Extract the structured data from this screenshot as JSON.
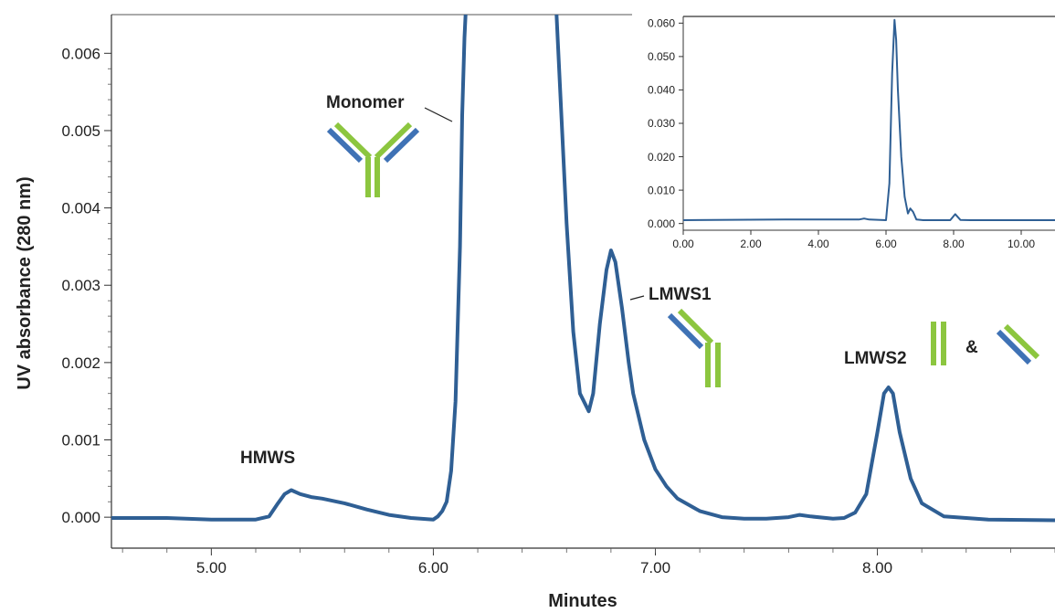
{
  "chart_data": [
    {
      "type": "line",
      "xlabel": "Minutes",
      "ylabel": "UV absorbance (280 nm)",
      "xlim": [
        4.55,
        8.8
      ],
      "ylim": [
        -0.0004,
        0.0065
      ],
      "xticks": [
        5.0,
        6.0,
        7.0,
        8.0
      ],
      "xtick_labels": [
        "5.00",
        "6.00",
        "7.00",
        "8.00"
      ],
      "yticks": [
        0.0,
        0.001,
        0.002,
        0.003,
        0.004,
        0.005,
        0.006
      ],
      "ytick_labels": [
        "0.000",
        "0.001",
        "0.002",
        "0.003",
        "0.004",
        "0.005",
        "0.006"
      ],
      "grid": false,
      "series": [
        {
          "color": "#2f5f94",
          "x": [
            4.55,
            4.8,
            5.0,
            5.2,
            5.26,
            5.3,
            5.33,
            5.36,
            5.4,
            5.45,
            5.5,
            5.6,
            5.7,
            5.8,
            5.9,
            6.0,
            6.02,
            6.04,
            6.06,
            6.08,
            6.1,
            6.12,
            6.13,
            6.14,
            6.15,
            6.55,
            6.56,
            6.58,
            6.6,
            6.63,
            6.66,
            6.7,
            6.72,
            6.75,
            6.78,
            6.8,
            6.82,
            6.85,
            6.88,
            6.9,
            6.95,
            7.0,
            7.05,
            7.1,
            7.2,
            7.3,
            7.4,
            7.5,
            7.6,
            7.65,
            7.7,
            7.8,
            7.85,
            7.9,
            7.95,
            8.0,
            8.03,
            8.05,
            8.07,
            8.1,
            8.15,
            8.2,
            8.3,
            8.5,
            8.8
          ],
          "y": [
            -1e-05,
            -1e-05,
            -3e-05,
            -3e-05,
            1e-05,
            0.00018,
            0.0003,
            0.00035,
            0.0003,
            0.00026,
            0.00024,
            0.00018,
            0.0001,
            3e-05,
            -1e-05,
            -3e-05,
            1e-05,
            8e-05,
            0.0002,
            0.0006,
            0.0015,
            0.0035,
            0.0052,
            0.0062,
            0.0068,
            0.0068,
            0.0062,
            0.005,
            0.0038,
            0.0024,
            0.0016,
            0.00137,
            0.0016,
            0.0025,
            0.0032,
            0.00345,
            0.0033,
            0.0027,
            0.002,
            0.0016,
            0.001,
            0.00062,
            0.0004,
            0.00024,
            8e-05,
            0.0,
            -2e-05,
            -2e-05,
            0.0,
            3e-05,
            1e-05,
            -2e-05,
            -1e-05,
            6e-05,
            0.0003,
            0.0011,
            0.0016,
            0.00168,
            0.0016,
            0.0011,
            0.0005,
            0.00018,
            1e-05,
            -3e-05,
            -4e-05
          ]
        }
      ],
      "annotations": [
        {
          "text": "Monomer",
          "x": 6.07,
          "y": 0.0053
        },
        {
          "text": "HMWS",
          "x": 5.36,
          "y": 0.00083
        },
        {
          "text": "LMWS1",
          "x": 6.87,
          "y": 0.0029
        },
        {
          "text": "LMWS2",
          "x": 8.0,
          "y": 0.002
        },
        {
          "text": "&",
          "x": 8.45,
          "y": 0.0023
        }
      ]
    },
    {
      "type": "line",
      "role": "inset",
      "xlabel": "",
      "ylabel": "",
      "xlim": [
        0.0,
        11.0
      ],
      "ylim": [
        -0.002,
        0.062
      ],
      "xticks": [
        0.0,
        2.0,
        4.0,
        6.0,
        8.0,
        10.0
      ],
      "xtick_labels": [
        "0.00",
        "2.00",
        "4.00",
        "6.00",
        "8.00",
        "10.00"
      ],
      "yticks": [
        0.0,
        0.01,
        0.02,
        0.03,
        0.04,
        0.05,
        0.06
      ],
      "ytick_labels": [
        "0.000",
        "0.010",
        "0.020",
        "0.030",
        "0.040",
        "0.050",
        "0.060"
      ],
      "grid": false,
      "series": [
        {
          "color": "#2f5f94",
          "x": [
            0.0,
            3.0,
            5.2,
            5.35,
            5.5,
            6.0,
            6.1,
            6.18,
            6.25,
            6.3,
            6.35,
            6.45,
            6.55,
            6.65,
            6.72,
            6.8,
            6.9,
            7.1,
            7.5,
            7.9,
            8.05,
            8.2,
            8.5,
            11.0
          ],
          "y": [
            0.001,
            0.0012,
            0.0012,
            0.0015,
            0.0012,
            0.001,
            0.012,
            0.045,
            0.061,
            0.055,
            0.04,
            0.02,
            0.008,
            0.003,
            0.0045,
            0.0035,
            0.0012,
            0.001,
            0.001,
            0.001,
            0.0028,
            0.0011,
            0.001,
            0.001
          ]
        }
      ]
    }
  ]
}
